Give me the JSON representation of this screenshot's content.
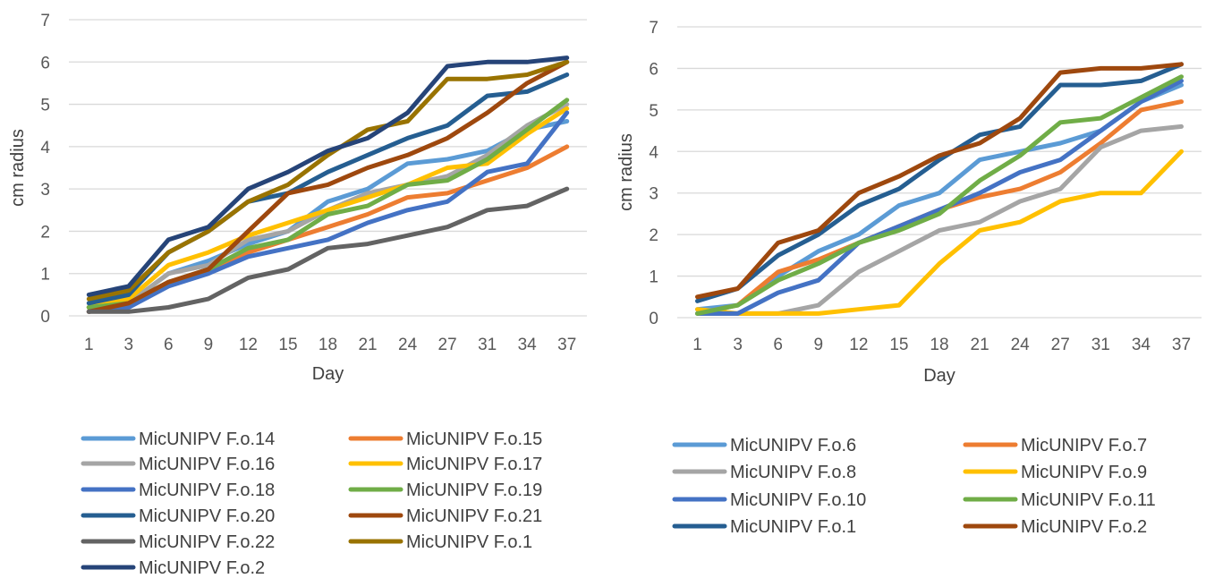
{
  "chart_data": [
    {
      "type": "line",
      "title": "",
      "xlabel": "Day",
      "ylabel": "cm radius",
      "ylim": [
        0,
        7
      ],
      "yticks": [
        "0",
        "1",
        "2",
        "3",
        "4",
        "5",
        "6",
        "7"
      ],
      "grid": "horizontal",
      "legend_position": "bottom",
      "categories": [
        "1",
        "3",
        "6",
        "9",
        "12",
        "15",
        "18",
        "21",
        "24",
        "27",
        "31",
        "34",
        "37"
      ],
      "series": [
        {
          "name": "MicUNIPV F.o.14",
          "color": "#5B9BD5",
          "values": [
            0.2,
            0.3,
            1.0,
            1.3,
            1.7,
            2.0,
            2.7,
            3.0,
            3.6,
            3.7,
            3.9,
            4.4,
            4.6
          ]
        },
        {
          "name": "MicUNIPV F.o.15",
          "color": "#ED7D31",
          "values": [
            0.1,
            0.2,
            0.8,
            1.0,
            1.5,
            1.8,
            2.1,
            2.4,
            2.8,
            2.9,
            3.2,
            3.5,
            4.0
          ]
        },
        {
          "name": "MicUNIPV F.o.16",
          "color": "#A5A5A5",
          "values": [
            0.2,
            0.3,
            1.0,
            1.2,
            1.8,
            2.0,
            2.5,
            2.9,
            3.1,
            3.3,
            3.8,
            4.5,
            5.0
          ]
        },
        {
          "name": "MicUNIPV F.o.17",
          "color": "#FFC000",
          "values": [
            0.2,
            0.4,
            1.2,
            1.5,
            1.9,
            2.2,
            2.5,
            2.8,
            3.1,
            3.5,
            3.6,
            4.3,
            4.9
          ]
        },
        {
          "name": "MicUNIPV F.o.18",
          "color": "#4472C4",
          "values": [
            0.1,
            0.2,
            0.7,
            1.0,
            1.4,
            1.6,
            1.8,
            2.2,
            2.5,
            2.7,
            3.4,
            3.6,
            4.8
          ]
        },
        {
          "name": "MicUNIPV F.o.19",
          "color": "#70AD47",
          "values": [
            0.2,
            0.3,
            0.8,
            1.1,
            1.6,
            1.8,
            2.4,
            2.6,
            3.1,
            3.2,
            3.7,
            4.4,
            5.1
          ]
        },
        {
          "name": "MicUNIPV F.o.20",
          "color": "#255E91",
          "values": [
            0.3,
            0.5,
            1.5,
            2.0,
            2.7,
            2.9,
            3.4,
            3.8,
            4.2,
            4.5,
            5.2,
            5.3,
            5.7
          ]
        },
        {
          "name": "MicUNIPV F.o.21",
          "color": "#9E480E",
          "values": [
            0.1,
            0.3,
            0.8,
            1.1,
            2.0,
            2.9,
            3.1,
            3.5,
            3.8,
            4.2,
            4.8,
            5.5,
            6.0
          ]
        },
        {
          "name": "MicUNIPV F.o.22",
          "color": "#636363",
          "values": [
            0.1,
            0.1,
            0.2,
            0.4,
            0.9,
            1.1,
            1.6,
            1.7,
            1.9,
            2.1,
            2.5,
            2.6,
            3.0
          ]
        },
        {
          "name": "MicUNIPV F.o.1",
          "color": "#997300",
          "values": [
            0.4,
            0.6,
            1.5,
            2.0,
            2.7,
            3.1,
            3.8,
            4.4,
            4.6,
            5.6,
            5.6,
            5.7,
            6.0
          ]
        },
        {
          "name": "MicUNIPV F.o.2",
          "color": "#264478",
          "values": [
            0.5,
            0.7,
            1.8,
            2.1,
            3.0,
            3.4,
            3.9,
            4.2,
            4.8,
            5.9,
            6.0,
            6.0,
            6.1
          ]
        }
      ]
    },
    {
      "type": "line",
      "title": "",
      "xlabel": "Day",
      "ylabel": "cm radius",
      "ylim": [
        0,
        7
      ],
      "yticks": [
        "0",
        "1",
        "2",
        "3",
        "4",
        "5",
        "6",
        "7"
      ],
      "grid": "horizontal",
      "legend_position": "bottom",
      "categories": [
        "1",
        "3",
        "6",
        "9",
        "12",
        "15",
        "18",
        "21",
        "24",
        "27",
        "31",
        "34",
        "37"
      ],
      "series": [
        {
          "name": "MicUNIPV F.o.6",
          "color": "#5B9BD5",
          "values": [
            0.2,
            0.3,
            1.0,
            1.6,
            2.0,
            2.7,
            3.0,
            3.8,
            4.0,
            4.2,
            4.5,
            5.2,
            5.6
          ]
        },
        {
          "name": "MicUNIPV F.o.7",
          "color": "#ED7D31",
          "values": [
            0.1,
            0.3,
            1.1,
            1.4,
            1.8,
            2.2,
            2.6,
            2.9,
            3.1,
            3.5,
            4.2,
            5.0,
            5.2
          ]
        },
        {
          "name": "MicUNIPV F.o.8",
          "color": "#A5A5A5",
          "values": [
            0.1,
            0.1,
            0.1,
            0.3,
            1.1,
            1.6,
            2.1,
            2.3,
            2.8,
            3.1,
            4.1,
            4.5,
            4.6
          ]
        },
        {
          "name": "MicUNIPV F.o.9",
          "color": "#FFC000",
          "values": [
            0.2,
            0.1,
            0.1,
            0.1,
            0.2,
            0.3,
            1.3,
            2.1,
            2.3,
            2.8,
            3.0,
            3.0,
            4.0
          ]
        },
        {
          "name": "MicUNIPV F.o.10",
          "color": "#4472C4",
          "values": [
            0.1,
            0.1,
            0.6,
            0.9,
            1.8,
            2.2,
            2.6,
            3.0,
            3.5,
            3.8,
            4.5,
            5.2,
            5.7
          ]
        },
        {
          "name": "MicUNIPV F.o.11",
          "color": "#70AD47",
          "values": [
            0.1,
            0.3,
            0.9,
            1.3,
            1.8,
            2.1,
            2.5,
            3.3,
            3.9,
            4.7,
            4.8,
            5.3,
            5.8
          ]
        },
        {
          "name": "MicUNIPV F.o.1",
          "color": "#255E91",
          "values": [
            0.4,
            0.7,
            1.5,
            2.0,
            2.7,
            3.1,
            3.8,
            4.4,
            4.6,
            5.6,
            5.6,
            5.7,
            6.1
          ]
        },
        {
          "name": "MicUNIPV F.o.2",
          "color": "#9E480E",
          "values": [
            0.5,
            0.7,
            1.8,
            2.1,
            3.0,
            3.4,
            3.9,
            4.2,
            4.8,
            5.9,
            6.0,
            6.0,
            6.1
          ]
        }
      ]
    }
  ]
}
